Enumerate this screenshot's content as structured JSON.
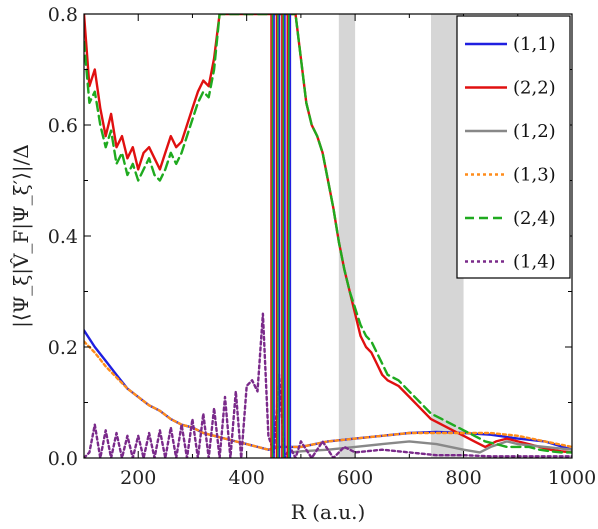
{
  "chart_data": {
    "type": "line",
    "title": "",
    "xlabel": "R (a.u.)",
    "ylabel": "|⟨Ψ_ξ|V̂_F|Ψ_ξ′⟩|/Δ",
    "xlim": [
      100,
      1000
    ],
    "ylim": [
      0,
      0.8
    ],
    "xticks": [
      200,
      400,
      600,
      800,
      1000
    ],
    "yticks": [
      0.0,
      0.2,
      0.4,
      0.6,
      0.8
    ],
    "xtick_labels": [
      "200",
      "400",
      "600",
      "800",
      "1000"
    ],
    "ytick_labels": [
      "0.0",
      "0.2",
      "0.4",
      "0.6",
      "0.8"
    ],
    "grid": false,
    "legend_position": "top-right",
    "shaded_regions": [
      [
        570,
        600
      ],
      [
        740,
        800
      ]
    ],
    "series": [
      {
        "name": "(1,1)",
        "color": "#1f1fe0",
        "dash": "solid",
        "x": [
          100,
          120,
          140,
          160,
          180,
          200,
          220,
          240,
          260,
          280,
          300,
          320,
          340,
          360,
          380,
          400,
          420,
          440,
          460,
          480,
          500,
          550,
          600,
          650,
          700,
          750,
          800,
          850,
          900,
          950,
          1000
        ],
        "y": [
          0.23,
          0.2,
          0.175,
          0.15,
          0.125,
          0.11,
          0.095,
          0.085,
          0.07,
          0.06,
          0.055,
          0.045,
          0.04,
          0.035,
          0.03,
          0.025,
          0.02,
          0.015,
          0.02,
          0.02,
          0.02,
          0.03,
          0.035,
          0.04,
          0.045,
          0.047,
          0.045,
          0.042,
          0.035,
          0.03,
          0.015
        ]
      },
      {
        "name": "(2,2)",
        "color": "#e01010",
        "dash": "solid",
        "x": [
          100,
          110,
          120,
          130,
          140,
          150,
          160,
          170,
          180,
          190,
          200,
          210,
          220,
          230,
          240,
          250,
          260,
          270,
          280,
          290,
          300,
          310,
          320,
          330,
          340,
          350,
          490,
          500,
          510,
          520,
          530,
          540,
          550,
          560,
          570,
          580,
          590,
          600,
          610,
          620,
          630,
          640,
          650,
          660,
          680,
          700,
          720,
          740,
          760,
          780,
          800,
          820,
          840,
          860,
          880,
          900,
          920,
          940,
          960,
          980,
          1000
        ],
        "y": [
          0.8,
          0.67,
          0.7,
          0.63,
          0.58,
          0.62,
          0.56,
          0.58,
          0.54,
          0.56,
          0.52,
          0.55,
          0.56,
          0.54,
          0.52,
          0.55,
          0.58,
          0.56,
          0.57,
          0.6,
          0.63,
          0.66,
          0.68,
          0.67,
          0.72,
          0.8,
          0.8,
          0.72,
          0.64,
          0.6,
          0.58,
          0.55,
          0.5,
          0.45,
          0.39,
          0.34,
          0.3,
          0.26,
          0.22,
          0.2,
          0.19,
          0.17,
          0.15,
          0.14,
          0.13,
          0.11,
          0.09,
          0.07,
          0.06,
          0.05,
          0.04,
          0.03,
          0.02,
          0.03,
          0.035,
          0.03,
          0.025,
          0.02,
          0.015,
          0.012,
          0.01
        ]
      },
      {
        "name": "(1,2)",
        "color": "#888888",
        "dash": "solid",
        "x": [
          480,
          500,
          550,
          600,
          650,
          700,
          750,
          800,
          830,
          850,
          880,
          900,
          950,
          1000
        ],
        "y": [
          0.01,
          0.012,
          0.015,
          0.02,
          0.025,
          0.03,
          0.025,
          0.015,
          0.01,
          0.02,
          0.03,
          0.025,
          0.02,
          0.015
        ]
      },
      {
        "name": "(1,3)",
        "color": "#ff8c1a",
        "dash": "dotted",
        "x": [
          100,
          120,
          140,
          160,
          180,
          200,
          220,
          240,
          260,
          280,
          300,
          320,
          340,
          360,
          380,
          400,
          420,
          440,
          460,
          480,
          500,
          550,
          600,
          650,
          700,
          750,
          800,
          850,
          900,
          950,
          1000
        ],
        "y": [
          0.21,
          0.19,
          0.165,
          0.145,
          0.125,
          0.11,
          0.095,
          0.085,
          0.07,
          0.06,
          0.055,
          0.045,
          0.04,
          0.035,
          0.03,
          0.025,
          0.02,
          0.015,
          0.02,
          0.02,
          0.02,
          0.03,
          0.035,
          0.04,
          0.045,
          0.045,
          0.045,
          0.045,
          0.04,
          0.03,
          0.02
        ]
      },
      {
        "name": "(2,4)",
        "color": "#1faa1f",
        "dash": "dashed",
        "x": [
          100,
          110,
          120,
          130,
          140,
          150,
          160,
          170,
          180,
          190,
          200,
          210,
          220,
          230,
          240,
          250,
          260,
          270,
          280,
          290,
          300,
          310,
          320,
          330,
          340,
          350,
          490,
          500,
          510,
          520,
          530,
          540,
          550,
          560,
          570,
          580,
          590,
          600,
          610,
          620,
          630,
          640,
          650,
          660,
          680,
          700,
          720,
          740,
          760,
          780,
          800,
          820,
          840,
          860,
          880,
          900,
          920,
          940,
          960,
          980,
          1000
        ],
        "y": [
          0.75,
          0.64,
          0.66,
          0.6,
          0.56,
          0.59,
          0.53,
          0.55,
          0.51,
          0.53,
          0.5,
          0.52,
          0.54,
          0.51,
          0.5,
          0.52,
          0.55,
          0.53,
          0.55,
          0.58,
          0.61,
          0.64,
          0.66,
          0.65,
          0.7,
          0.8,
          0.8,
          0.72,
          0.64,
          0.6,
          0.58,
          0.55,
          0.5,
          0.45,
          0.39,
          0.34,
          0.3,
          0.27,
          0.24,
          0.22,
          0.21,
          0.19,
          0.17,
          0.15,
          0.14,
          0.12,
          0.1,
          0.08,
          0.07,
          0.06,
          0.05,
          0.04,
          0.03,
          0.025,
          0.02,
          0.02,
          0.02,
          0.015,
          0.012,
          0.01,
          0.01
        ]
      },
      {
        "name": "(1,4)",
        "color": "#7a2a8a",
        "dash": "dotted",
        "x": [
          100,
          110,
          120,
          130,
          140,
          150,
          160,
          170,
          180,
          190,
          200,
          210,
          220,
          230,
          240,
          250,
          260,
          270,
          280,
          290,
          300,
          310,
          320,
          330,
          340,
          350,
          360,
          370,
          380,
          390,
          400,
          410,
          420,
          430,
          440,
          450,
          460,
          470,
          480,
          490,
          500,
          520,
          540,
          560,
          580,
          600,
          650,
          700,
          750,
          800,
          850,
          900,
          950,
          1000
        ],
        "y": [
          0.0,
          0.01,
          0.06,
          0.0,
          0.05,
          0.0,
          0.045,
          0.0,
          0.04,
          0.0,
          0.04,
          0.0,
          0.045,
          0.0,
          0.05,
          0.0,
          0.055,
          0.0,
          0.06,
          0.0,
          0.07,
          0.0,
          0.08,
          0.0,
          0.09,
          0.0,
          0.11,
          0.0,
          0.12,
          0.0,
          0.13,
          0.14,
          0.12,
          0.26,
          0.04,
          0.01,
          0.15,
          0.0,
          0.02,
          0.0,
          0.03,
          0.0,
          0.03,
          0.0,
          0.02,
          0.01,
          0.015,
          0.01,
          0.005,
          0.005,
          0.003,
          0.003,
          0.003,
          0.003
        ]
      }
    ],
    "spikes_note_x": [
      445,
      455,
      465,
      475
    ]
  }
}
